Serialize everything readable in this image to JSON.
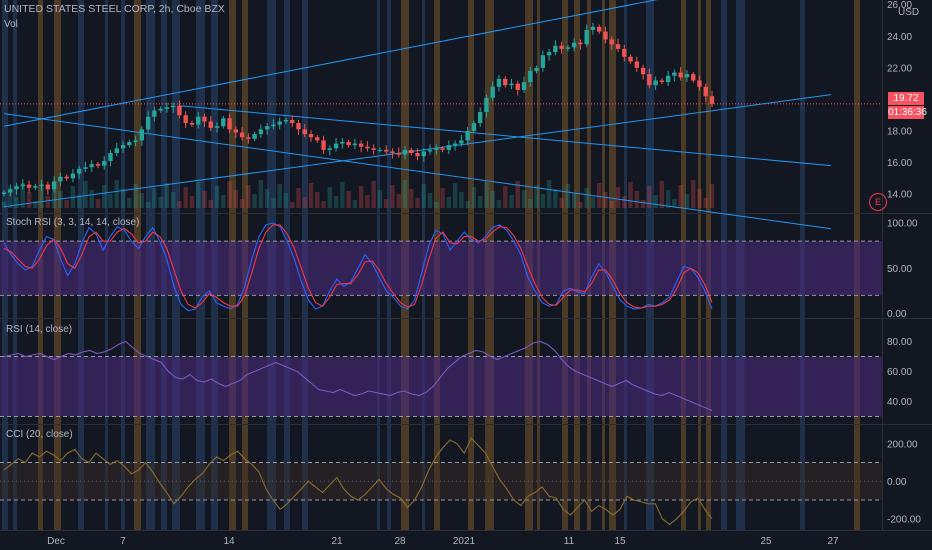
{
  "header": {
    "symbol_title": "UNITED STATES STEEL CORP, 2h, Cboe BZX",
    "volume_label": "Vol",
    "currency": "USD",
    "last_price": "19.72",
    "countdown": "01:36:36",
    "event_marker": "E"
  },
  "colors": {
    "background": "#131722",
    "up_candle": "#26a69a",
    "down_candle": "#ef5350",
    "trendline": "#2196f3",
    "band_fill": "#4a2a7a",
    "stoch_k": "#2962ff",
    "stoch_d": "#f23645",
    "rsi_line": "#7e57c2",
    "cci_line": "#8b6d2c",
    "session_orange": "#7a5a2a",
    "session_blue": "#28456b"
  },
  "chart_data": [
    {
      "type": "candlestick",
      "title": "UNITED STATES STEEL CORP, 2h, Cboe BZX",
      "y_axis_ticks": [
        "26.00",
        "24.00",
        "22.00",
        "18.00",
        "16.00",
        "14.00"
      ],
      "ylim": [
        12.8,
        26.3
      ],
      "x_ticks": [
        "Dec",
        "7",
        "14",
        "21",
        "28",
        "2021",
        "11",
        "15",
        "25",
        "27"
      ],
      "last_close": 19.72,
      "close_series": [
        14.1,
        14.3,
        14.5,
        14.6,
        14.4,
        14.5,
        14.6,
        14.3,
        14.8,
        15.1,
        15.0,
        15.3,
        15.6,
        15.7,
        15.9,
        15.8,
        16.1,
        16.6,
        16.9,
        17.1,
        17.3,
        17.4,
        18.1,
        18.9,
        19.3,
        19.4,
        19.5,
        19.6,
        19.0,
        18.5,
        18.4,
        18.9,
        18.6,
        18.2,
        18.3,
        18.8,
        18.1,
        17.9,
        17.6,
        17.5,
        17.8,
        18.1,
        18.3,
        18.4,
        18.6,
        18.7,
        18.5,
        18.1,
        17.8,
        17.6,
        17.4,
        16.8,
        16.9,
        17.2,
        17.3,
        17.1,
        17.2,
        17.0,
        16.9,
        16.8,
        16.8,
        16.7,
        16.6,
        16.5,
        16.8,
        16.6,
        16.4,
        16.7,
        16.8,
        16.9,
        16.8,
        17.1,
        17.2,
        17.4,
        18.0,
        18.5,
        19.2,
        20.1,
        20.8,
        21.3,
        20.9,
        21.0,
        20.6,
        21.1,
        21.8,
        22.0,
        22.8,
        23.0,
        23.4,
        23.2,
        23.3,
        23.6,
        23.5,
        24.4,
        24.6,
        24.3,
        23.8,
        23.5,
        23.2,
        22.7,
        22.4,
        22.0,
        21.6,
        20.9,
        21.2,
        21.1,
        21.5,
        21.7,
        21.4,
        21.6,
        21.2,
        20.8,
        20.2,
        19.72
      ],
      "trendlines": [
        {
          "from": [
            0,
            18.3
          ],
          "to": [
            113,
            27.0
          ]
        },
        {
          "from": [
            0,
            19.1
          ],
          "to": [
            132,
            11.8
          ]
        },
        {
          "from": [
            28,
            19.6
          ],
          "to": [
            132,
            15.8
          ]
        },
        {
          "from": [
            0,
            13.2
          ],
          "to": [
            132,
            20.3
          ]
        }
      ]
    },
    {
      "type": "line",
      "title": "Stoch RSI (3, 3, 14, 14, close)",
      "y_axis_ticks": [
        "100.00",
        "50.00",
        "0.00"
      ],
      "ylim": [
        -5,
        110
      ],
      "band": [
        20,
        80
      ],
      "series": [
        {
          "values": [
            78,
            65,
            55,
            48,
            52,
            70,
            85,
            82,
            60,
            42,
            55,
            78,
            95,
            88,
            70,
            85,
            96,
            92,
            80,
            72,
            85,
            95,
            80,
            60,
            30,
            10,
            3,
            5,
            18,
            25,
            12,
            8,
            5,
            10,
            30,
            60,
            85,
            98,
            100,
            96,
            80,
            60,
            35,
            15,
            5,
            8,
            25,
            38,
            30,
            35,
            50,
            65,
            55,
            40,
            25,
            18,
            8,
            5,
            15,
            45,
            75,
            92,
            88,
            70,
            80,
            90,
            82,
            78,
            85,
            95,
            98,
            92,
            80,
            65,
            40,
            25,
            12,
            8,
            10,
            25,
            28,
            24,
            22,
            40,
            55,
            45,
            30,
            15,
            8,
            5,
            6,
            10,
            8,
            12,
            18,
            35,
            52,
            50,
            40,
            25,
            5
          ]
        },
        {
          "values": [
            72,
            68,
            60,
            52,
            50,
            60,
            75,
            82,
            72,
            55,
            50,
            65,
            85,
            90,
            80,
            80,
            90,
            94,
            88,
            78,
            80,
            90,
            85,
            72,
            48,
            25,
            10,
            6,
            12,
            22,
            18,
            12,
            8,
            8,
            20,
            45,
            72,
            90,
            98,
            98,
            88,
            72,
            50,
            28,
            12,
            8,
            18,
            32,
            33,
            33,
            43,
            57,
            58,
            48,
            33,
            22,
            12,
            7,
            10,
            32,
            60,
            83,
            90,
            78,
            77,
            85,
            85,
            80,
            82,
            90,
            96,
            95,
            86,
            72,
            52,
            33,
            18,
            10,
            9,
            18,
            26,
            26,
            24,
            33,
            48,
            48,
            37,
            22,
            12,
            7,
            6,
            8,
            8,
            10,
            15,
            27,
            45,
            50,
            45,
            32,
            12
          ]
        }
      ]
    },
    {
      "type": "line",
      "title": "RSI (14, close)",
      "y_axis_ticks": [
        "80.00",
        "60.00",
        "40.00"
      ],
      "ylim": [
        25,
        95
      ],
      "band": [
        30,
        70
      ],
      "series": [
        {
          "values": [
            70,
            71,
            72,
            70,
            71,
            72,
            70,
            68,
            70,
            72,
            71,
            73,
            74,
            72,
            73,
            75,
            78,
            80,
            76,
            72,
            70,
            68,
            66,
            60,
            56,
            55,
            58,
            54,
            53,
            55,
            52,
            50,
            52,
            54,
            58,
            60,
            62,
            64,
            66,
            64,
            62,
            60,
            56,
            52,
            48,
            47,
            46,
            48,
            46,
            44,
            45,
            47,
            46,
            45,
            44,
            46,
            47,
            45,
            44,
            46,
            50,
            56,
            62,
            66,
            70,
            72,
            74,
            73,
            70,
            68,
            70,
            72,
            74,
            76,
            79,
            80,
            78,
            74,
            68,
            63,
            60,
            58,
            56,
            54,
            52,
            50,
            52,
            54,
            51,
            49,
            47,
            45,
            44,
            46,
            44,
            42,
            40,
            38,
            36,
            34
          ]
        }
      ]
    },
    {
      "type": "line",
      "title": "CCI (20, close)",
      "y_axis_ticks": [
        "200.00",
        "0.00",
        "-200.00"
      ],
      "ylim": [
        -260,
        300
      ],
      "band": [
        -100,
        100
      ],
      "series": [
        {
          "values": [
            60,
            90,
            120,
            100,
            150,
            130,
            160,
            140,
            110,
            150,
            170,
            120,
            100,
            150,
            120,
            90,
            110,
            80,
            40,
            60,
            100,
            50,
            -10,
            -60,
            -120,
            -80,
            -30,
            10,
            40,
            90,
            130,
            110,
            140,
            160,
            120,
            90,
            50,
            -40,
            -100,
            -150,
            -120,
            -80,
            -40,
            0,
            -30,
            -60,
            -20,
            20,
            -40,
            -80,
            -100,
            -70,
            -30,
            10,
            -40,
            -70,
            -90,
            -140,
            -100,
            -30,
            60,
            130,
            180,
            220,
            200,
            150,
            230,
            190,
            150,
            80,
            10,
            -40,
            -100,
            -130,
            -80,
            -60,
            -30,
            -80,
            -90,
            -150,
            -180,
            -140,
            -100,
            -160,
            -130,
            -150,
            -180,
            -150,
            -80,
            -100,
            -110,
            -120,
            -120,
            -200,
            -230,
            -200,
            -160,
            -110,
            -90,
            -150,
            -200
          ]
        }
      ]
    }
  ]
}
